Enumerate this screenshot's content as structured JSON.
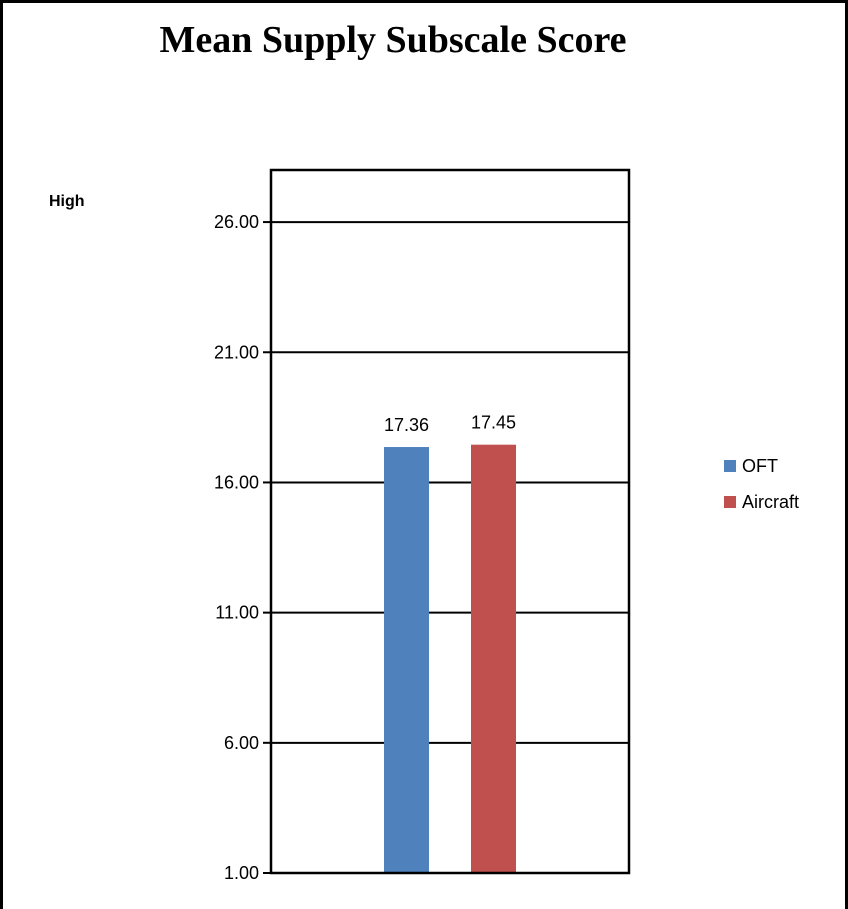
{
  "chart_data": {
    "type": "bar",
    "title": "Mean Supply Subscale Score",
    "side_label": "High",
    "categories": [
      ""
    ],
    "series": [
      {
        "name": "OFT",
        "color": "#4F81BD",
        "values": [
          17.36
        ],
        "label": "17.36"
      },
      {
        "name": "Aircraft",
        "color": "#C0504D",
        "values": [
          17.45
        ],
        "label": "17.45"
      }
    ],
    "yticks": [
      1,
      6,
      11,
      16,
      21,
      26
    ],
    "ytick_labels": [
      "1.00",
      "6.00",
      "11.00",
      "16.00",
      "21.00",
      "26.00"
    ],
    "ylim": [
      1,
      28
    ],
    "grid": true,
    "legend_position": "right"
  }
}
